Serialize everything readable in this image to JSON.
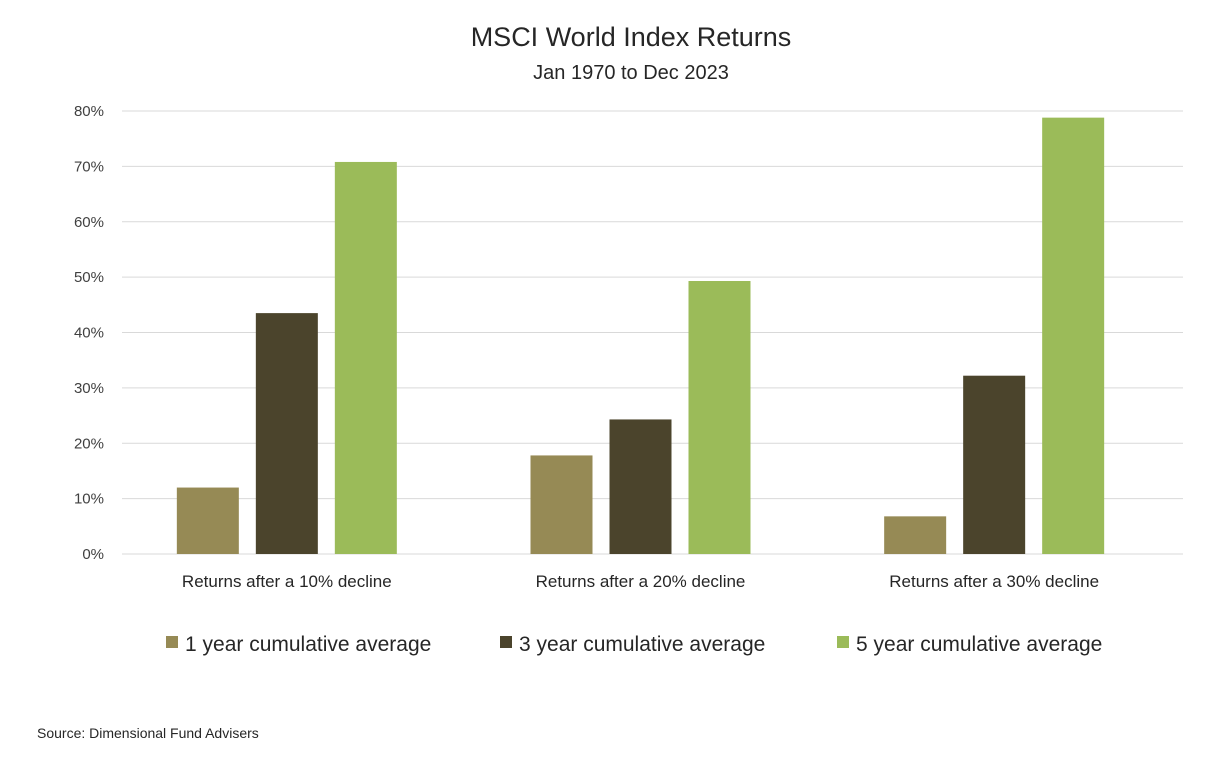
{
  "chart_data": {
    "type": "bar",
    "title": "MSCI World Index Returns",
    "subtitle": "Jan 1970 to Dec 2023",
    "xlabel": "",
    "ylabel": "",
    "categories": [
      "Returns after a 10% decline",
      "Returns after a 20% decline",
      "Returns after a 30% decline"
    ],
    "series": [
      {
        "name": "1 year cumulative average",
        "color": "#968a55",
        "values": [
          12,
          17.8,
          6.8
        ]
      },
      {
        "name": "3 year cumulative average",
        "color": "#4b442c",
        "values": [
          43.5,
          24.3,
          32.2
        ]
      },
      {
        "name": "5 year cumulative average",
        "color": "#9bbb59",
        "values": [
          70.8,
          49.3,
          78.8
        ]
      }
    ],
    "ylim": [
      0,
      80
    ],
    "yticks": [
      0,
      10,
      20,
      30,
      40,
      50,
      60,
      70,
      80
    ],
    "ytick_format": "percent",
    "grid": true,
    "legend_position": "bottom"
  },
  "source": "Source: Dimensional Fund Advisers"
}
